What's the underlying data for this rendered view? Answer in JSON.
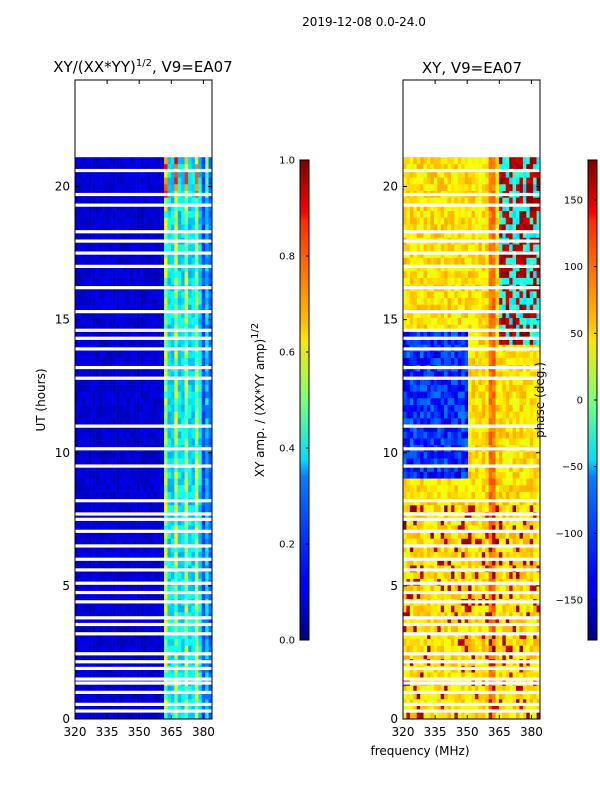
{
  "figure": {
    "suptitle": "2019-12-08 0.0-24.0",
    "xlabel": "frequency (MHz)"
  },
  "chart_data": [
    {
      "type": "heatmap",
      "name": "amplitude",
      "title_main": "XY/(XX*YY)",
      "title_sup": "1/2",
      "title_tail": ", V9=EA07",
      "ylabel": "UT (hours)",
      "xlim": [
        320,
        384
      ],
      "ylim": [
        0,
        24
      ],
      "x_ticks": [
        320,
        335,
        350,
        365,
        380
      ],
      "y_ticks": [
        0,
        5,
        10,
        15,
        20
      ],
      "data_ut_range": [
        0.0,
        21.1
      ],
      "colorbar": {
        "label_main": "XY amp. / (XX*YY amp)",
        "label_sup": "1/2",
        "range": [
          0.0,
          1.0
        ],
        "ticks": [
          "0.0",
          "0.2",
          "0.4",
          "0.6",
          "0.8",
          "1.0"
        ]
      },
      "note": "mostly low amplitude (~0.1) below 361 MHz, elevated (0.3-0.9) in channels 361-384 MHz"
    },
    {
      "type": "heatmap",
      "name": "phase",
      "title": "XY, V9=EA07",
      "xlim": [
        320,
        384
      ],
      "ylim": [
        0,
        24
      ],
      "x_ticks": [
        320,
        335,
        350,
        365,
        380
      ],
      "y_ticks": [
        0,
        5,
        10,
        15,
        20
      ],
      "data_ut_range": [
        0.0,
        21.1
      ],
      "colorbar": {
        "label": "phase (deg.)",
        "range": [
          -180,
          180
        ],
        "ticks": [
          "−150",
          "−100",
          "−50",
          "0",
          "50",
          "100",
          "150"
        ]
      },
      "note": "phase mostly ~50-80 deg with wrapping blue/red bands 9-21 h"
    }
  ],
  "gaps_ut": [
    0.3,
    0.55,
    1.0,
    1.35,
    1.5,
    1.9,
    2.15,
    2.45,
    3.2,
    3.55,
    3.8,
    4.4,
    4.75,
    5.1,
    5.6,
    6.0,
    6.5,
    7.05,
    7.5,
    7.7,
    8.2,
    9.5,
    10.15,
    11.0,
    12.8,
    13.2,
    13.9,
    14.3,
    14.6,
    15.3,
    16.2,
    17.0,
    17.5,
    17.95,
    18.3,
    19.3,
    19.7,
    20.6
  ]
}
